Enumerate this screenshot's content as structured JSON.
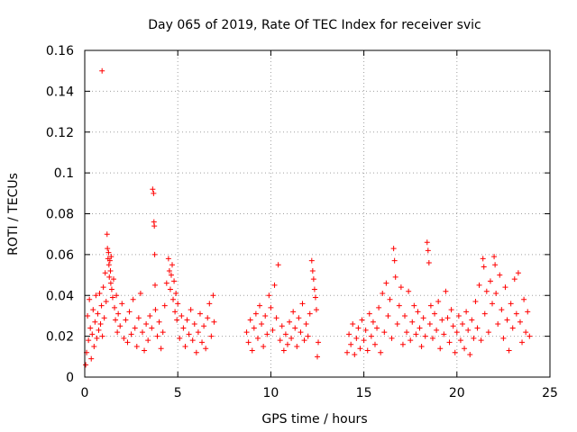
{
  "chart_data": {
    "type": "scatter",
    "title": "Day 065 of 2019, Rate Of TEC Index for receiver svic",
    "xlabel": "GPS time / hours",
    "ylabel": "ROTI / TECUs",
    "xlim": [
      0,
      25
    ],
    "ylim": [
      0,
      0.16
    ],
    "xticks": [
      0,
      5,
      10,
      15,
      20,
      25
    ],
    "xtick_labels": [
      "0",
      "5",
      "10",
      "15",
      "20",
      "25"
    ],
    "yticks": [
      0,
      0.02,
      0.04,
      0.06,
      0.08,
      0.1,
      0.12,
      0.14,
      0.16
    ],
    "ytick_labels": [
      "0",
      "0.02",
      "0.04",
      "0.06",
      "0.08",
      "0.1",
      "0.12",
      "0.14",
      "0.16"
    ],
    "grid": true,
    "marker": "+",
    "color": "#ff0000",
    "series": [
      {
        "name": "ROTI",
        "points": [
          [
            0.05,
            0.006
          ],
          [
            0.1,
            0.012
          ],
          [
            0.15,
            0.03
          ],
          [
            0.2,
            0.018
          ],
          [
            0.25,
            0.038
          ],
          [
            0.3,
            0.024
          ],
          [
            0.35,
            0.009
          ],
          [
            0.4,
            0.021
          ],
          [
            0.45,
            0.033
          ],
          [
            0.5,
            0.015
          ],
          [
            0.55,
            0.027
          ],
          [
            0.6,
            0.04
          ],
          [
            0.65,
            0.019
          ],
          [
            0.7,
            0.031
          ],
          [
            0.75,
            0.023
          ],
          [
            0.8,
            0.041
          ],
          [
            0.85,
            0.026
          ],
          [
            0.9,
            0.035
          ],
          [
            0.93,
            0.15
          ],
          [
            0.95,
            0.02
          ],
          [
            1.0,
            0.044
          ],
          [
            1.05,
            0.029
          ],
          [
            1.1,
            0.051
          ],
          [
            1.15,
            0.037
          ],
          [
            1.2,
            0.07
          ],
          [
            1.22,
            0.063
          ],
          [
            1.25,
            0.058
          ],
          [
            1.28,
            0.061
          ],
          [
            1.3,
            0.055
          ],
          [
            1.32,
            0.049
          ],
          [
            1.35,
            0.057
          ],
          [
            1.38,
            0.052
          ],
          [
            1.4,
            0.046
          ],
          [
            1.42,
            0.059
          ],
          [
            1.45,
            0.043
          ],
          [
            1.5,
            0.039
          ],
          [
            1.55,
            0.048
          ],
          [
            1.6,
            0.034
          ],
          [
            1.65,
            0.028
          ],
          [
            1.7,
            0.04
          ],
          [
            1.75,
            0.022
          ],
          [
            1.8,
            0.031
          ],
          [
            1.9,
            0.025
          ],
          [
            2.0,
            0.036
          ],
          [
            2.1,
            0.019
          ],
          [
            2.2,
            0.028
          ],
          [
            2.3,
            0.017
          ],
          [
            2.4,
            0.032
          ],
          [
            2.5,
            0.021
          ],
          [
            2.6,
            0.038
          ],
          [
            2.7,
            0.024
          ],
          [
            2.8,
            0.015
          ],
          [
            2.9,
            0.029
          ],
          [
            3.0,
            0.041
          ],
          [
            3.1,
            0.022
          ],
          [
            3.2,
            0.013
          ],
          [
            3.3,
            0.026
          ],
          [
            3.4,
            0.018
          ],
          [
            3.5,
            0.03
          ],
          [
            3.6,
            0.024
          ],
          [
            3.65,
            0.092
          ],
          [
            3.7,
            0.09
          ],
          [
            3.72,
            0.076
          ],
          [
            3.74,
            0.074
          ],
          [
            3.76,
            0.06
          ],
          [
            3.78,
            0.045
          ],
          [
            3.8,
            0.033
          ],
          [
            3.9,
            0.02
          ],
          [
            4.0,
            0.027
          ],
          [
            4.1,
            0.014
          ],
          [
            4.2,
            0.022
          ],
          [
            4.3,
            0.035
          ],
          [
            4.4,
            0.046
          ],
          [
            4.5,
            0.058
          ],
          [
            4.55,
            0.052
          ],
          [
            4.6,
            0.043
          ],
          [
            4.65,
            0.05
          ],
          [
            4.7,
            0.055
          ],
          [
            4.75,
            0.038
          ],
          [
            4.8,
            0.047
          ],
          [
            4.85,
            0.032
          ],
          [
            4.9,
            0.041
          ],
          [
            4.95,
            0.028
          ],
          [
            5.0,
            0.036
          ],
          [
            5.1,
            0.019
          ],
          [
            5.2,
            0.03
          ],
          [
            5.3,
            0.024
          ],
          [
            5.4,
            0.015
          ],
          [
            5.5,
            0.028
          ],
          [
            5.6,
            0.021
          ],
          [
            5.7,
            0.033
          ],
          [
            5.8,
            0.018
          ],
          [
            5.9,
            0.026
          ],
          [
            6.0,
            0.012
          ],
          [
            6.1,
            0.022
          ],
          [
            6.2,
            0.031
          ],
          [
            6.3,
            0.017
          ],
          [
            6.4,
            0.025
          ],
          [
            6.5,
            0.014
          ],
          [
            6.6,
            0.029
          ],
          [
            6.7,
            0.036
          ],
          [
            6.8,
            0.02
          ],
          [
            6.9,
            0.04
          ],
          [
            6.95,
            0.027
          ],
          [
            8.7,
            0.022
          ],
          [
            8.8,
            0.017
          ],
          [
            8.9,
            0.028
          ],
          [
            9.0,
            0.013
          ],
          [
            9.1,
            0.024
          ],
          [
            9.2,
            0.031
          ],
          [
            9.3,
            0.019
          ],
          [
            9.4,
            0.035
          ],
          [
            9.5,
            0.026
          ],
          [
            9.6,
            0.015
          ],
          [
            9.7,
            0.03
          ],
          [
            9.8,
            0.021
          ],
          [
            9.9,
            0.04
          ],
          [
            10.0,
            0.034
          ],
          [
            10.1,
            0.023
          ],
          [
            10.2,
            0.045
          ],
          [
            10.3,
            0.029
          ],
          [
            10.4,
            0.055
          ],
          [
            10.5,
            0.018
          ],
          [
            10.6,
            0.025
          ],
          [
            10.7,
            0.013
          ],
          [
            10.8,
            0.021
          ],
          [
            10.9,
            0.016
          ],
          [
            11.0,
            0.027
          ],
          [
            11.1,
            0.019
          ],
          [
            11.2,
            0.032
          ],
          [
            11.3,
            0.024
          ],
          [
            11.4,
            0.015
          ],
          [
            11.5,
            0.029
          ],
          [
            11.6,
            0.022
          ],
          [
            11.7,
            0.036
          ],
          [
            11.8,
            0.018
          ],
          [
            11.9,
            0.026
          ],
          [
            12.0,
            0.02
          ],
          [
            12.1,
            0.031
          ],
          [
            12.2,
            0.057
          ],
          [
            12.25,
            0.052
          ],
          [
            12.3,
            0.048
          ],
          [
            12.35,
            0.043
          ],
          [
            12.4,
            0.039
          ],
          [
            12.45,
            0.033
          ],
          [
            12.5,
            0.01
          ],
          [
            12.55,
            0.017
          ],
          [
            14.1,
            0.012
          ],
          [
            14.2,
            0.021
          ],
          [
            14.3,
            0.016
          ],
          [
            14.4,
            0.026
          ],
          [
            14.5,
            0.011
          ],
          [
            14.6,
            0.019
          ],
          [
            14.7,
            0.024
          ],
          [
            14.8,
            0.014
          ],
          [
            14.9,
            0.028
          ],
          [
            15.0,
            0.018
          ],
          [
            15.1,
            0.023
          ],
          [
            15.2,
            0.013
          ],
          [
            15.3,
            0.031
          ],
          [
            15.4,
            0.02
          ],
          [
            15.5,
            0.027
          ],
          [
            15.6,
            0.016
          ],
          [
            15.7,
            0.024
          ],
          [
            15.8,
            0.034
          ],
          [
            15.9,
            0.012
          ],
          [
            16.0,
            0.041
          ],
          [
            16.1,
            0.022
          ],
          [
            16.2,
            0.046
          ],
          [
            16.3,
            0.03
          ],
          [
            16.4,
            0.038
          ],
          [
            16.5,
            0.019
          ],
          [
            16.6,
            0.063
          ],
          [
            16.65,
            0.057
          ],
          [
            16.7,
            0.049
          ],
          [
            16.8,
            0.026
          ],
          [
            16.9,
            0.035
          ],
          [
            17.0,
            0.044
          ],
          [
            17.1,
            0.016
          ],
          [
            17.2,
            0.03
          ],
          [
            17.3,
            0.022
          ],
          [
            17.4,
            0.042
          ],
          [
            17.5,
            0.018
          ],
          [
            17.6,
            0.027
          ],
          [
            17.7,
            0.035
          ],
          [
            17.8,
            0.021
          ],
          [
            17.9,
            0.032
          ],
          [
            18.0,
            0.024
          ],
          [
            18.1,
            0.015
          ],
          [
            18.2,
            0.029
          ],
          [
            18.3,
            0.02
          ],
          [
            18.4,
            0.066
          ],
          [
            18.45,
            0.062
          ],
          [
            18.5,
            0.056
          ],
          [
            18.55,
            0.026
          ],
          [
            18.6,
            0.035
          ],
          [
            18.7,
            0.019
          ],
          [
            18.8,
            0.031
          ],
          [
            18.9,
            0.023
          ],
          [
            19.0,
            0.037
          ],
          [
            19.1,
            0.014
          ],
          [
            19.2,
            0.028
          ],
          [
            19.3,
            0.021
          ],
          [
            19.4,
            0.042
          ],
          [
            19.5,
            0.029
          ],
          [
            19.6,
            0.017
          ],
          [
            19.7,
            0.033
          ],
          [
            19.8,
            0.025
          ],
          [
            19.9,
            0.012
          ],
          [
            20.0,
            0.022
          ],
          [
            20.1,
            0.03
          ],
          [
            20.2,
            0.018
          ],
          [
            20.3,
            0.026
          ],
          [
            20.4,
            0.014
          ],
          [
            20.5,
            0.032
          ],
          [
            20.6,
            0.023
          ],
          [
            20.7,
            0.011
          ],
          [
            20.8,
            0.028
          ],
          [
            20.9,
            0.019
          ],
          [
            21.0,
            0.037
          ],
          [
            21.1,
            0.024
          ],
          [
            21.2,
            0.045
          ],
          [
            21.3,
            0.018
          ],
          [
            21.4,
            0.058
          ],
          [
            21.45,
            0.054
          ],
          [
            21.5,
            0.031
          ],
          [
            21.6,
            0.042
          ],
          [
            21.7,
            0.022
          ],
          [
            21.8,
            0.047
          ],
          [
            21.9,
            0.036
          ],
          [
            22.0,
            0.059
          ],
          [
            22.05,
            0.055
          ],
          [
            22.1,
            0.041
          ],
          [
            22.2,
            0.026
          ],
          [
            22.3,
            0.05
          ],
          [
            22.4,
            0.033
          ],
          [
            22.5,
            0.019
          ],
          [
            22.6,
            0.044
          ],
          [
            22.7,
            0.028
          ],
          [
            22.8,
            0.013
          ],
          [
            22.9,
            0.036
          ],
          [
            23.0,
            0.024
          ],
          [
            23.1,
            0.048
          ],
          [
            23.2,
            0.031
          ],
          [
            23.3,
            0.051
          ],
          [
            23.4,
            0.027
          ],
          [
            23.5,
            0.017
          ],
          [
            23.6,
            0.038
          ],
          [
            23.7,
            0.022
          ],
          [
            23.8,
            0.032
          ],
          [
            23.9,
            0.02
          ]
        ]
      }
    ]
  }
}
